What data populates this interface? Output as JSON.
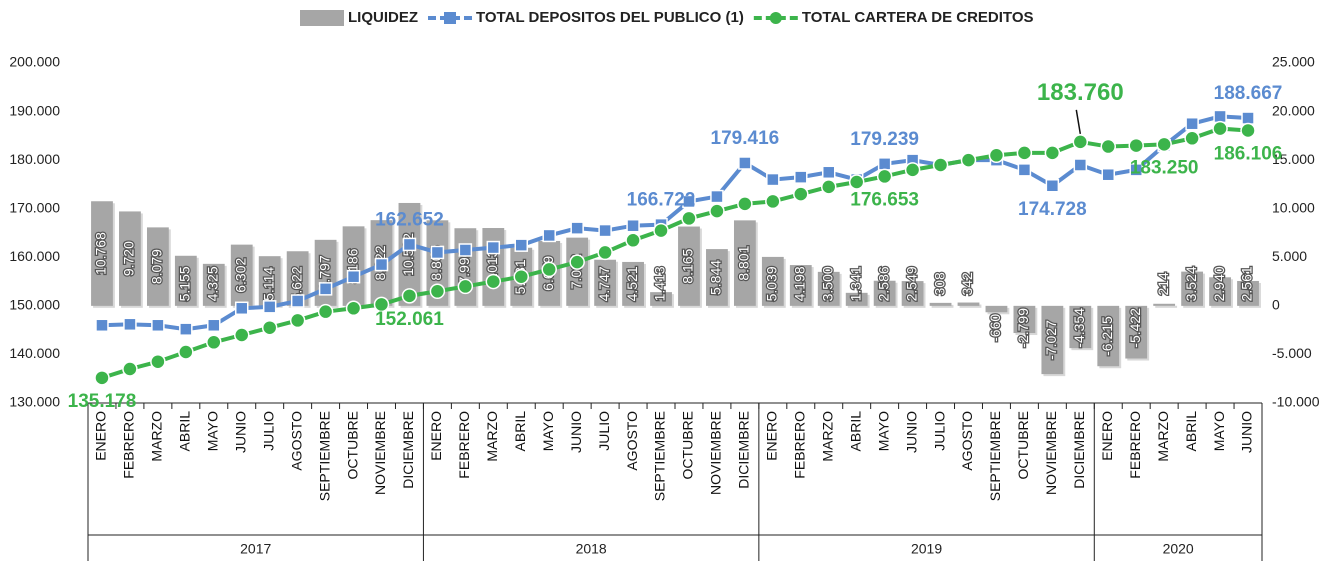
{
  "chart_data": {
    "type": "bar-line",
    "categories": [
      "ENERO",
      "FEBRERO",
      "MARZO",
      "ABRIL",
      "MAYO",
      "JUNIO",
      "JULIO",
      "AGOSTO",
      "SEPTIEMBRE",
      "OCTUBRE",
      "NOVIEMBRE",
      "DICIEMBRE",
      "ENERO",
      "FEBRERO",
      "MARZO",
      "ABRIL",
      "MAYO",
      "JUNIO",
      "JULIO",
      "AGOSTO",
      "SEPTIEMBRE",
      "OCTUBRE",
      "NOVIEMBRE",
      "DICIEMBRE",
      "ENERO",
      "FEBRERO",
      "MARZO",
      "ABRIL",
      "MAYO",
      "JUNIO",
      "JULIO",
      "AGOSTO",
      "SEPTIEMBRE",
      "OCTUBRE",
      "NOVIEMBRE",
      "DICIEMBRE",
      "ENERO",
      "FEBRERO",
      "MARZO",
      "ABRIL",
      "MAYO",
      "JUNIO"
    ],
    "groups": [
      {
        "label": "2017",
        "count": 12
      },
      {
        "label": "2018",
        "count": 12
      },
      {
        "label": "2019",
        "count": 12
      },
      {
        "label": "2020",
        "count": 6
      }
    ],
    "series": [
      {
        "name": "LIQUIDEZ",
        "type": "bar",
        "axis": "y2",
        "color": "#a6a6a6",
        "values": [
          10768,
          9720,
          8079,
          5155,
          4325,
          6302,
          5114,
          5622,
          6797,
          8186,
          8822,
          10592,
          8805,
          7992,
          8013,
          5981,
          6679,
          7022,
          4747,
          4521,
          1413,
          8165,
          5844,
          8801,
          5039,
          4198,
          3500,
          1341,
          2586,
          2549,
          308,
          342,
          -660,
          -2799,
          -7027,
          -4354,
          -6215,
          -5422,
          214,
          3524,
          2940,
          2561
        ],
        "value_labels": [
          "10.768",
          "9.720",
          "8.079",
          "5.155",
          "4.325",
          "6.302",
          "5.114",
          "5.622",
          "6.797",
          "8.186",
          "8.822",
          "10.592",
          "8.805",
          "7.992",
          "8.013",
          "5.981",
          "6.679",
          "7.022",
          "4.747",
          "4.521",
          "1.413",
          "8.165",
          "5.844",
          "8.801",
          "5.039",
          "4.198",
          "3.500",
          "1.341",
          "2.586",
          "2.549",
          "308",
          "342",
          "-660",
          "-2.799",
          "-7.027",
          "-4.354",
          "-6.215",
          "-5.422",
          "214",
          "3.524",
          "2.940",
          "2.561"
        ]
      },
      {
        "name": "TOTAL DEPOSITOS DEL PUBLICO (1)",
        "type": "line",
        "marker": "square",
        "color": "#5b8bd0",
        "values": [
          146000,
          146200,
          146000,
          145200,
          146000,
          149500,
          149800,
          151000,
          153500,
          156000,
          158500,
          162652,
          161000,
          161500,
          162000,
          162500,
          164500,
          166000,
          165500,
          166500,
          166722,
          171500,
          172500,
          179416,
          176000,
          176500,
          177500,
          176000,
          179239,
          180000,
          179000,
          180000,
          180000,
          178000,
          174728,
          179000,
          177000,
          178000,
          183000,
          187500,
          189000,
          188667
        ],
        "value_labels": [
          null,
          null,
          null,
          null,
          null,
          null,
          null,
          null,
          null,
          null,
          null,
          "162.652",
          null,
          null,
          null,
          null,
          null,
          null,
          null,
          null,
          "166.722",
          null,
          null,
          "179.416",
          null,
          null,
          null,
          null,
          "179.239",
          null,
          null,
          null,
          null,
          null,
          "174.728",
          null,
          null,
          null,
          null,
          null,
          null,
          "188.667"
        ]
      },
      {
        "name": "TOTAL CARTERA DE CREDITOS",
        "type": "line",
        "marker": "circle",
        "color": "#3cb44b",
        "values": [
          135178,
          137000,
          138500,
          140500,
          142500,
          144000,
          145500,
          147000,
          148800,
          149500,
          150300,
          152061,
          153000,
          154000,
          155000,
          156000,
          157500,
          159000,
          161000,
          163500,
          165500,
          168000,
          169500,
          171000,
          171500,
          173000,
          174500,
          175500,
          176653,
          178000,
          179000,
          180000,
          181000,
          181500,
          181500,
          183760,
          182800,
          183000,
          183250,
          184500,
          186500,
          186106
        ],
        "value_labels": [
          "135.178",
          null,
          null,
          null,
          null,
          null,
          null,
          null,
          null,
          null,
          null,
          "152.061",
          null,
          null,
          null,
          null,
          null,
          null,
          null,
          null,
          null,
          null,
          null,
          null,
          null,
          null,
          null,
          null,
          "176.653",
          null,
          null,
          null,
          null,
          null,
          null,
          "183.760",
          null,
          null,
          "183.250",
          null,
          null,
          "186.106"
        ]
      }
    ],
    "ylim": [
      130000,
      200000
    ],
    "yticks": [
      {
        "value": 130000,
        "label": "130.000"
      },
      {
        "value": 140000,
        "label": "140.000"
      },
      {
        "value": 150000,
        "label": "150.000"
      },
      {
        "value": 160000,
        "label": "160.000"
      },
      {
        "value": 170000,
        "label": "170.000"
      },
      {
        "value": 180000,
        "label": "180.000"
      },
      {
        "value": 190000,
        "label": "190.000"
      },
      {
        "value": 200000,
        "label": "200.000"
      }
    ],
    "y2lim": [
      -10000,
      25000
    ],
    "y2ticks": [
      {
        "value": -10000,
        "label": "-10.000"
      },
      {
        "value": -5000,
        "label": "-5.000"
      },
      0,
      {
        "value": 5000,
        "label": "5.000"
      },
      {
        "value": 10000,
        "label": "10.000"
      },
      {
        "value": 15000,
        "label": "15.000"
      },
      {
        "value": 20000,
        "label": "20.000"
      },
      {
        "value": 25000,
        "label": "25.000"
      }
    ],
    "legend": "top"
  }
}
